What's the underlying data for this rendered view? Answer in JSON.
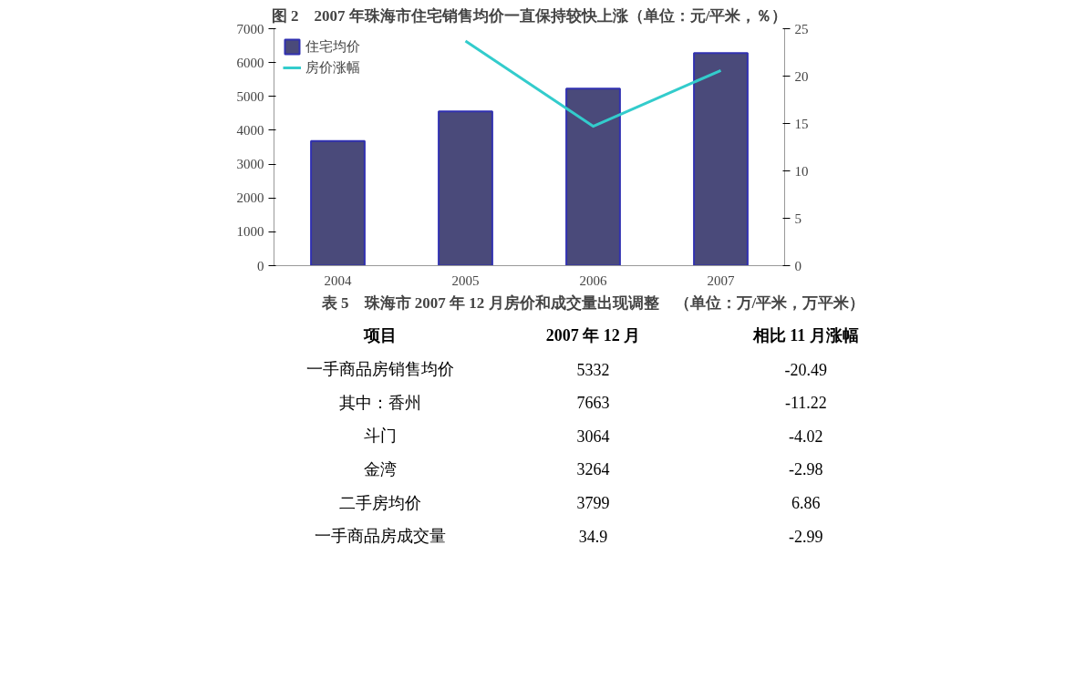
{
  "chart_data": [
    {
      "type": "bar",
      "title": "图 2　2007 年珠海市住宅销售均价一直保持较快上涨（单位：元/平米，％）",
      "categories": [
        "2004",
        "2005",
        "2006",
        "2007"
      ],
      "series": [
        {
          "name": "住宅均价",
          "type": "bar",
          "color": "#4a4a7a",
          "values": [
            3680,
            4560,
            5230,
            6280
          ]
        },
        {
          "name": "房价涨幅",
          "type": "line",
          "axis": "y2",
          "color": "#33cccc",
          "values": [
            null,
            23.7,
            14.7,
            20.6
          ]
        }
      ],
      "ylim": [
        0,
        7000
      ],
      "yticks": [
        0,
        1000,
        2000,
        3000,
        4000,
        5000,
        6000,
        7000
      ],
      "y2lim": [
        0,
        25
      ],
      "y2ticks": [
        0,
        5,
        10,
        15,
        20,
        25
      ],
      "legend": "top left",
      "grid": false
    },
    {
      "type": "other",
      "title": "表 5　珠海市 2007 年 12 月房价和成交量出现调整　（单位：万/平米，万平米）",
      "annotations": [
        "项目",
        "2007 年 12 月",
        "相比 11 月涨幅",
        "一手商品房销售均价",
        "5332",
        "-20.49",
        "其中：香州",
        "7663",
        "-11.22",
        "斗门",
        "3064",
        "-4.02",
        "金湾",
        "3264",
        "-2.98",
        "二手房均价",
        "3799",
        "6.86",
        "一手商品房成交量",
        "34.9",
        "-2.99"
      ]
    }
  ]
}
